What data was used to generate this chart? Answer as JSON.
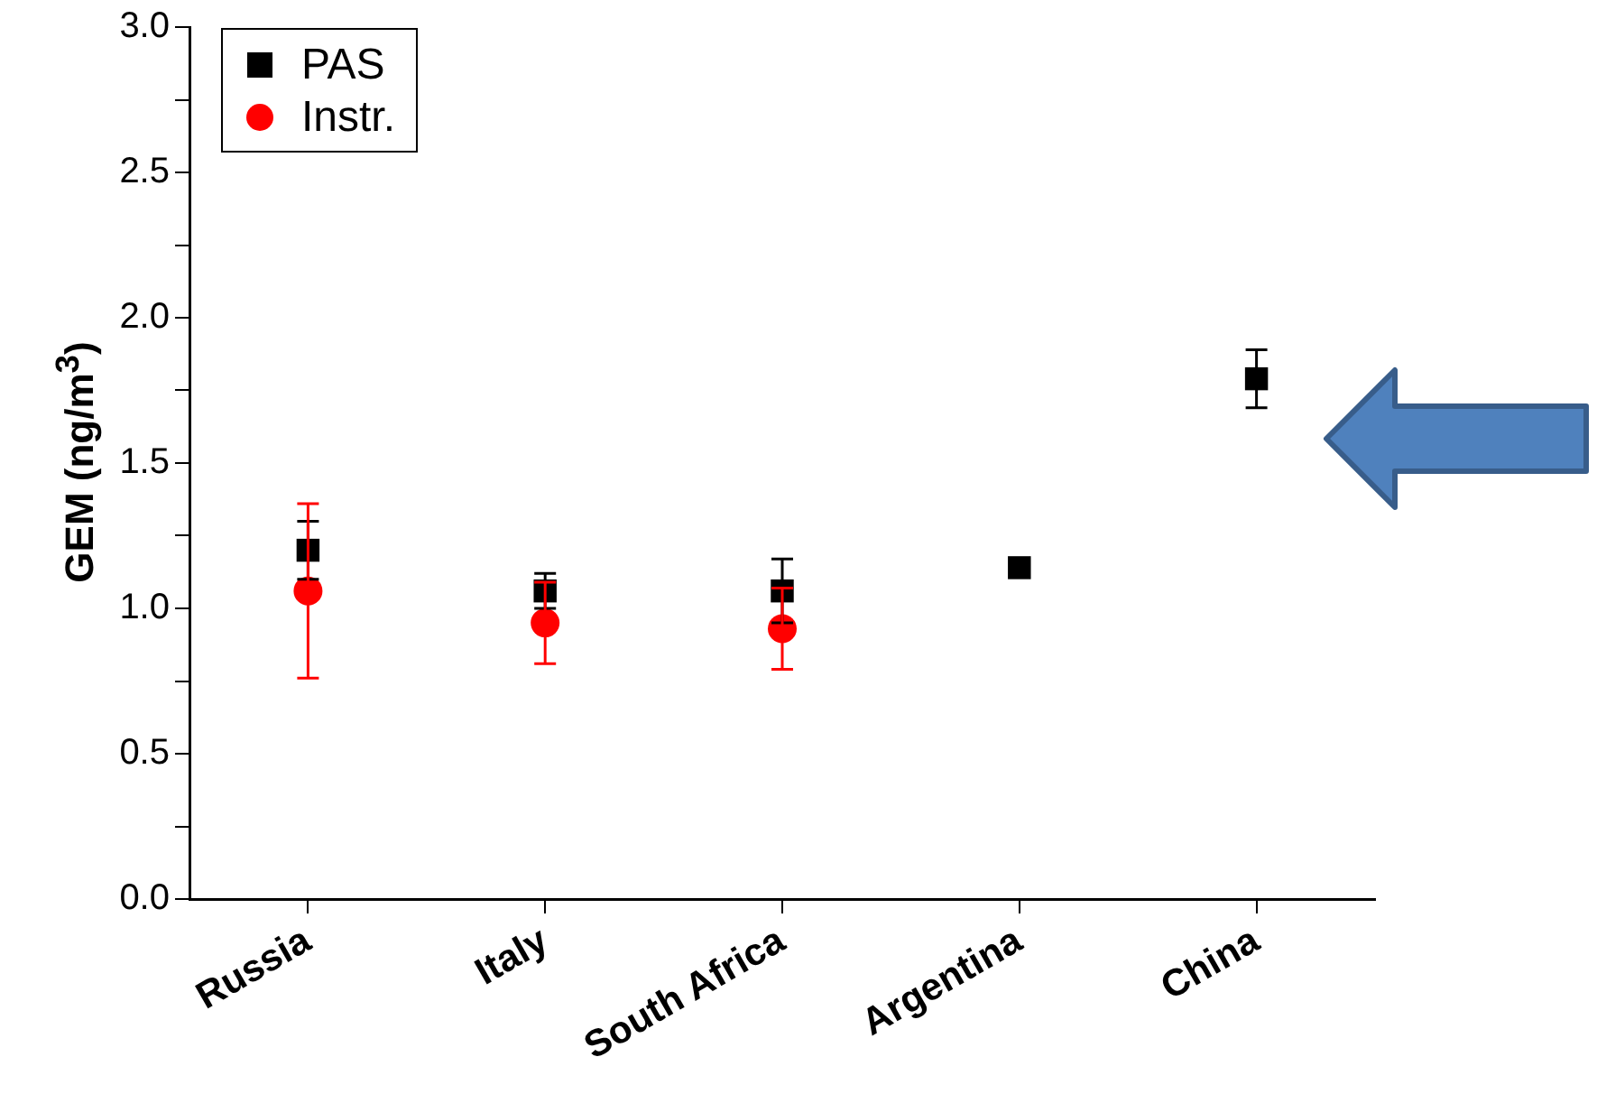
{
  "chart_data": {
    "type": "scatter",
    "ylabel": "GEM (ng/m$^{3}$)",
    "categories": [
      "Russia",
      "Italy",
      "South Africa",
      "Argentina",
      "China"
    ],
    "series": [
      {
        "name": "PAS",
        "color": "#000000",
        "marker": "square",
        "values": [
          1.2,
          1.06,
          1.06,
          1.14,
          1.79
        ],
        "errors": [
          0.1,
          0.06,
          0.11,
          null,
          0.1
        ]
      },
      {
        "name": "Instr.",
        "color": "#ff0000",
        "marker": "circle",
        "values": [
          1.06,
          0.95,
          0.93,
          null,
          null
        ],
        "errors": [
          0.3,
          0.14,
          0.14,
          null,
          null
        ]
      }
    ],
    "ylim": [
      0,
      3
    ],
    "yticks": [
      {
        "value": 0,
        "label": "0.0"
      },
      {
        "value": 0.25,
        "label": null
      },
      0.5,
      {
        "value": 0.75,
        "label": null
      },
      {
        "value": 1,
        "label": "1.0"
      },
      {
        "value": 1.25,
        "label": null
      },
      1.5,
      {
        "value": 1.75,
        "label": null
      },
      {
        "value": 2,
        "label": "2.0"
      },
      {
        "value": 2.25,
        "label": null
      },
      2.5,
      {
        "value": 2.75,
        "label": null
      },
      {
        "value": 3,
        "label": "3.0"
      }
    ],
    "grid": false,
    "legend": "top left"
  }
}
